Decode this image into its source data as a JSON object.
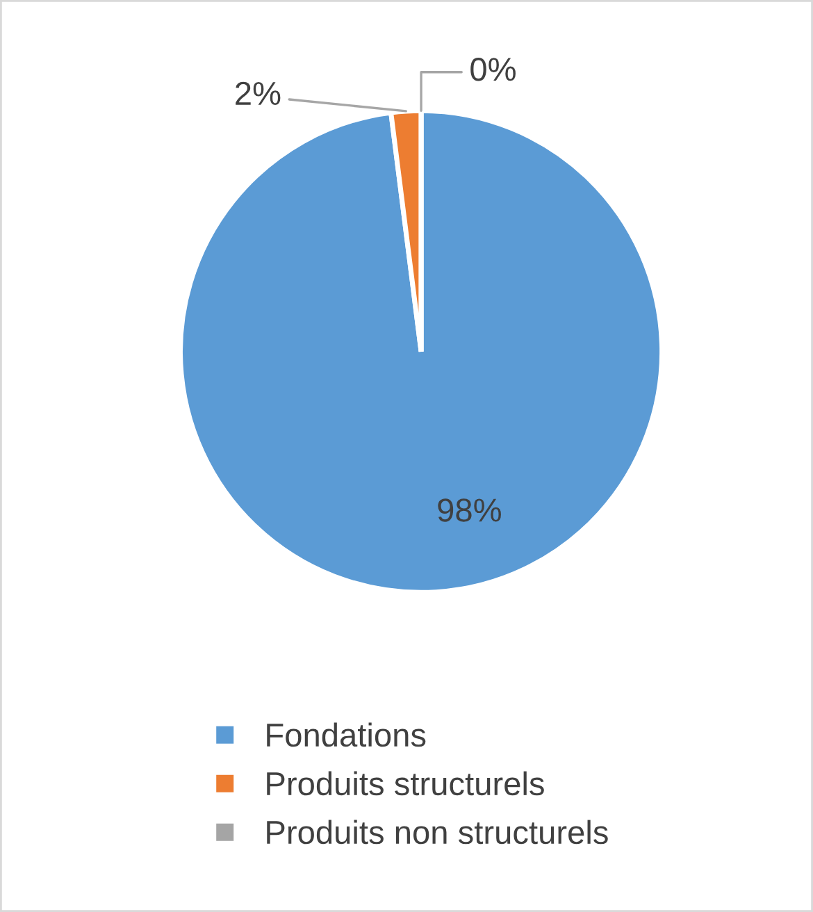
{
  "chart_data": {
    "type": "pie",
    "categories": [
      "Fondations",
      "Produits structurels",
      "Produits non structurels"
    ],
    "values": [
      98,
      2,
      0
    ],
    "colors": [
      "#5b9bd5",
      "#ed7d31",
      "#a5a5a5"
    ],
    "value_labels": [
      "98%",
      "2%",
      "0%"
    ],
    "legend": "bottom"
  }
}
